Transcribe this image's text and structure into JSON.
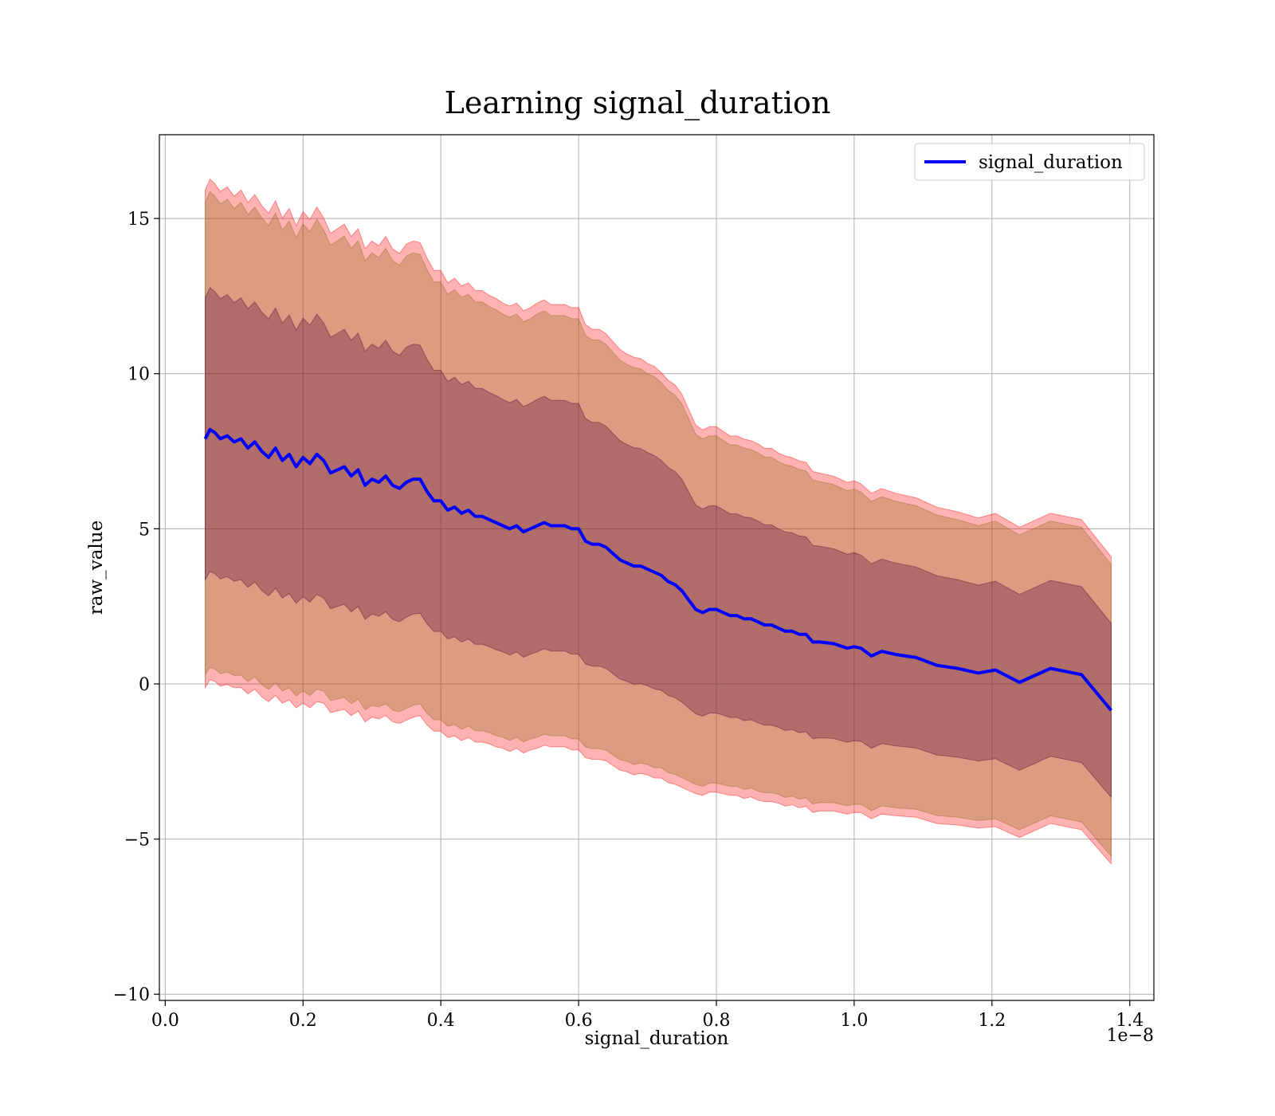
{
  "chart_data": {
    "type": "line",
    "title": "Learning signal_duration",
    "xlabel": "signal_duration",
    "ylabel": "raw_value",
    "x_offset_label": "1e−8",
    "xlim": [
      -0.0085,
      1.435
    ],
    "ylim": [
      -10.2,
      17.7
    ],
    "x_ticks": [
      0.0,
      0.2,
      0.4,
      0.6,
      0.8,
      1.0,
      1.2,
      1.4
    ],
    "x_tick_labels": [
      "0.0",
      "0.2",
      "0.4",
      "0.6",
      "0.8",
      "1.0",
      "1.2",
      "1.4"
    ],
    "y_ticks": [
      -10,
      -5,
      0,
      5,
      10,
      15
    ],
    "y_tick_labels": [
      "−10",
      "−5",
      "0",
      "5",
      "10",
      "15"
    ],
    "grid": true,
    "legend_position": "top-right",
    "colors": {
      "line": "#0000ff",
      "band_outer": "#ff0000",
      "band_middle": "#8b6914",
      "band_inner": "#4b0033",
      "grid": "#b0b0b0"
    },
    "band_sigma_multipliers": [
      3,
      2.85,
      1.7
    ],
    "series": [
      {
        "name": "signal_duration",
        "x": [
          0.058,
          0.065,
          0.072,
          0.08,
          0.09,
          0.1,
          0.11,
          0.12,
          0.13,
          0.14,
          0.15,
          0.16,
          0.17,
          0.18,
          0.19,
          0.2,
          0.21,
          0.22,
          0.23,
          0.24,
          0.25,
          0.26,
          0.27,
          0.28,
          0.29,
          0.3,
          0.31,
          0.32,
          0.33,
          0.34,
          0.35,
          0.36,
          0.37,
          0.38,
          0.39,
          0.4,
          0.41,
          0.42,
          0.43,
          0.44,
          0.45,
          0.46,
          0.47,
          0.48,
          0.49,
          0.5,
          0.51,
          0.52,
          0.53,
          0.54,
          0.55,
          0.56,
          0.57,
          0.58,
          0.59,
          0.6,
          0.61,
          0.62,
          0.63,
          0.64,
          0.65,
          0.66,
          0.67,
          0.68,
          0.69,
          0.7,
          0.71,
          0.72,
          0.73,
          0.74,
          0.75,
          0.76,
          0.77,
          0.78,
          0.79,
          0.8,
          0.81,
          0.82,
          0.83,
          0.84,
          0.85,
          0.86,
          0.87,
          0.88,
          0.89,
          0.9,
          0.91,
          0.92,
          0.93,
          0.94,
          0.95,
          0.97,
          0.99,
          1.0,
          1.01,
          1.025,
          1.04,
          1.06,
          1.09,
          1.12,
          1.15,
          1.18,
          1.205,
          1.24,
          1.285,
          1.33,
          1.373
        ],
        "values": [
          7.9,
          8.2,
          8.1,
          7.9,
          8.0,
          7.8,
          7.9,
          7.6,
          7.8,
          7.5,
          7.3,
          7.6,
          7.2,
          7.4,
          7.0,
          7.3,
          7.1,
          7.4,
          7.2,
          6.8,
          6.9,
          7.0,
          6.7,
          6.9,
          6.4,
          6.6,
          6.5,
          6.7,
          6.4,
          6.3,
          6.5,
          6.6,
          6.6,
          6.2,
          5.9,
          5.9,
          5.6,
          5.7,
          5.5,
          5.6,
          5.4,
          5.4,
          5.3,
          5.2,
          5.1,
          5.0,
          5.1,
          4.9,
          5.0,
          5.1,
          5.2,
          5.1,
          5.1,
          5.1,
          5.0,
          5.0,
          4.6,
          4.5,
          4.5,
          4.4,
          4.2,
          4.0,
          3.9,
          3.8,
          3.8,
          3.7,
          3.6,
          3.5,
          3.3,
          3.2,
          3.0,
          2.7,
          2.4,
          2.3,
          2.4,
          2.4,
          2.3,
          2.2,
          2.2,
          2.1,
          2.1,
          2.0,
          1.9,
          1.9,
          1.8,
          1.7,
          1.7,
          1.6,
          1.6,
          1.35,
          1.35,
          1.3,
          1.15,
          1.2,
          1.15,
          0.9,
          1.05,
          0.95,
          0.85,
          0.6,
          0.5,
          0.35,
          0.45,
          0.05,
          0.5,
          0.3,
          -0.85
        ]
      }
    ],
    "sigma": [
      8.1,
      8.15,
      8.1,
      8.05,
      8.1,
      8.0,
      8.1,
      8.0,
      8.05,
      8.0,
      7.95,
      8.05,
      7.9,
      8.0,
      7.85,
      8.0,
      7.95,
      8.05,
      7.9,
      7.8,
      7.85,
      7.9,
      7.8,
      7.85,
      7.7,
      7.75,
      7.7,
      7.8,
      7.7,
      7.65,
      7.75,
      7.75,
      7.7,
      7.6,
      7.5,
      7.5,
      7.4,
      7.45,
      7.4,
      7.4,
      7.35,
      7.35,
      7.3,
      7.3,
      7.25,
      7.25,
      7.25,
      7.2,
      7.2,
      7.25,
      7.25,
      7.2,
      7.2,
      7.2,
      7.2,
      7.2,
      7.05,
      7.0,
      7.0,
      6.95,
      6.9,
      6.85,
      6.8,
      6.8,
      6.75,
      6.7,
      6.7,
      6.6,
      6.55,
      6.5,
      6.4,
      6.2,
      6.0,
      5.95,
      5.95,
      5.95,
      5.9,
      5.85,
      5.85,
      5.85,
      5.8,
      5.8,
      5.75,
      5.75,
      5.7,
      5.7,
      5.65,
      5.65,
      5.6,
      5.55,
      5.5,
      5.45,
      5.4,
      5.4,
      5.35,
      5.3,
      5.3,
      5.25,
      5.2,
      5.15,
      5.1,
      5.05,
      5.1,
      5.05,
      5.05,
      5.05,
      5.0
    ]
  }
}
